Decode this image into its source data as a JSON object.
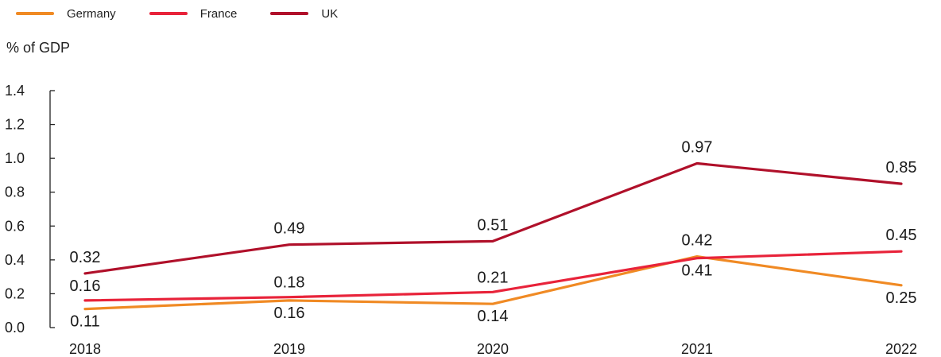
{
  "chart_data": {
    "type": "line",
    "ylabel": "% of GDP",
    "categories": [
      "2018",
      "2019",
      "2020",
      "2021",
      "2022"
    ],
    "ylim": [
      0,
      1.4
    ],
    "yticks": [
      "0.0",
      "0.2",
      "0.4",
      "0.6",
      "0.8",
      "1.0",
      "1.2",
      "1.4"
    ],
    "legend_position": "top-left",
    "grid": false,
    "series": [
      {
        "name": "Germany",
        "color": "#f08a24",
        "values": [
          0.11,
          0.16,
          0.14,
          0.42,
          0.25
        ],
        "labels": [
          "0.11",
          "0.16",
          "0.14",
          "0.42",
          "0.25"
        ]
      },
      {
        "name": "France",
        "color": "#e8233a",
        "values": [
          0.16,
          0.18,
          0.21,
          0.41,
          0.45
        ],
        "labels": [
          "0.16",
          "0.18",
          "0.21",
          "0.41",
          "0.45"
        ]
      },
      {
        "name": "UK",
        "color": "#b0102a",
        "values": [
          0.32,
          0.49,
          0.51,
          0.97,
          0.85
        ],
        "labels": [
          "0.32",
          "0.49",
          "0.51",
          "0.97",
          "0.85"
        ]
      }
    ]
  }
}
